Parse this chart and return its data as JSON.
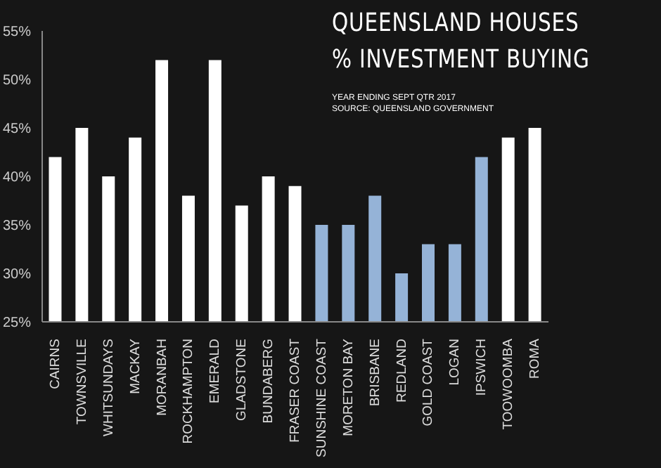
{
  "chart_data": {
    "type": "bar",
    "title": "QUEENSLAND HOUSES\n% INVESTMENT BUYING",
    "annotations": [
      "YEAR ENDING SEPT QTR 2017",
      "SOURCE: QUEENSLAND GOVERNMENT"
    ],
    "categories": [
      "CAIRNS",
      "TOWNSVILLE",
      "WHITSUNDAYS",
      "MACKAY",
      "MORANBAH",
      "ROCKHAMPTON",
      "EMERALD",
      "GLADSTONE",
      "BUNDABERG",
      "FRASER COAST",
      "SUNSHINE COAST",
      "MORETON BAY",
      "BRISBANE",
      "REDLAND",
      "GOLD COAST",
      "LOGAN",
      "IPSWICH",
      "TOOWOOMBA",
      "ROMA"
    ],
    "values": [
      42,
      45,
      40,
      44,
      52,
      38,
      52,
      37,
      40,
      39,
      35,
      35,
      38,
      30,
      33,
      33,
      42,
      44,
      45
    ],
    "colors": [
      "#ffffff",
      "#ffffff",
      "#ffffff",
      "#ffffff",
      "#ffffff",
      "#ffffff",
      "#ffffff",
      "#ffffff",
      "#ffffff",
      "#ffffff",
      "#95b3d7",
      "#95b3d7",
      "#95b3d7",
      "#95b3d7",
      "#95b3d7",
      "#95b3d7",
      "#95b3d7",
      "#ffffff",
      "#ffffff"
    ],
    "ylim": [
      25,
      55
    ],
    "yticks": [
      {
        "value": 25,
        "label": "25%"
      },
      {
        "value": 30,
        "label": "30%"
      },
      {
        "value": 35,
        "label": "35%"
      },
      {
        "value": 40,
        "label": "40%"
      },
      {
        "value": 45,
        "label": "45%"
      },
      {
        "value": 50,
        "label": "50%"
      },
      {
        "value": 55,
        "label": "55%"
      }
    ],
    "grid": false,
    "legend": false
  }
}
